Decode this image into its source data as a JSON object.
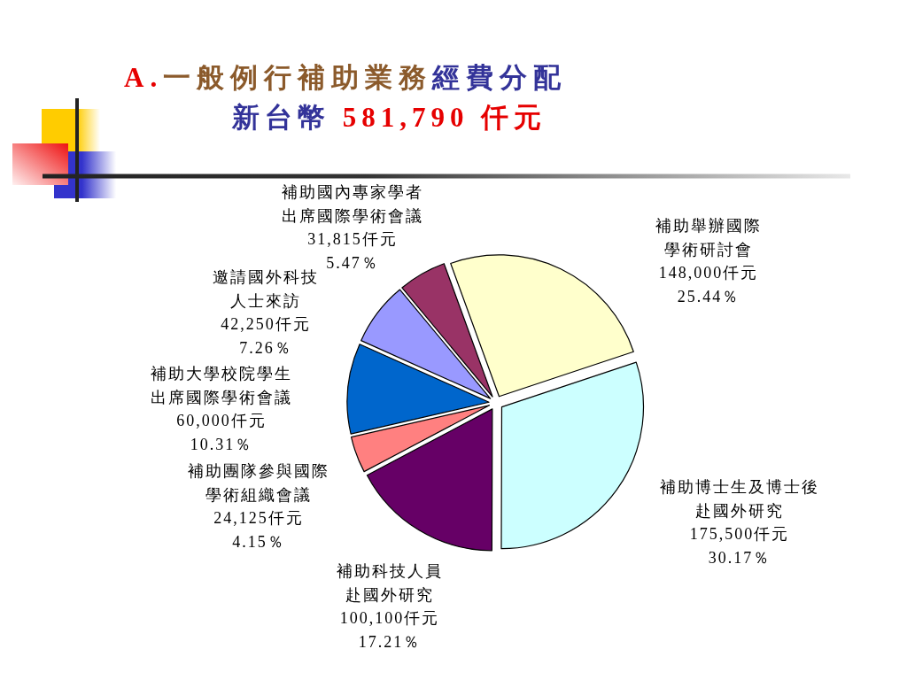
{
  "chart_data": {
    "type": "pie",
    "title": "A.一般例行補助業務經費分配",
    "subtitle": "新台幣 581,790 仟元",
    "categories": [
      "補助舉辦國際學術研討會",
      "補助博士生及博士後赴國外研究",
      "補助科技人員赴國外研究",
      "補助團隊參與國際學術組織會議",
      "補助大學校院學生出席國際學術會議",
      "邀請國外科技人士來訪",
      "補助國內專家學者出席國際學術會議"
    ],
    "values": [
      148000,
      175500,
      100100,
      24125,
      60000,
      42250,
      31815
    ],
    "colors": [
      "#ffffcc",
      "#ccffff",
      "#660066",
      "#ff8080",
      "#0066cc",
      "#9999ff",
      "#993366"
    ],
    "value_labels": [
      "148,000仟元\n25.44％",
      "175,500仟元\n30.17％",
      "100,100仟元\n17.21％",
      "24,125仟元\n4.15％",
      "60,000仟元\n10.31％",
      "42,250仟元\n7.26％",
      "31,815仟元\n5.47％"
    ]
  }
}
